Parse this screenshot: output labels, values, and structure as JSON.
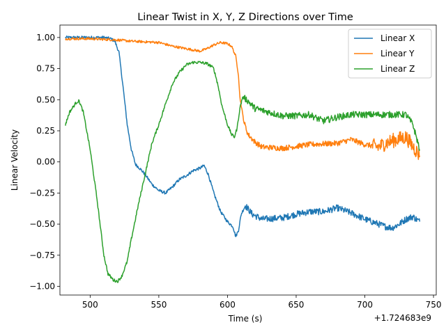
{
  "chart_data": {
    "type": "line",
    "title": "Linear Twist in X, Y, Z Directions over Time",
    "xlabel": "Time (s)",
    "ylabel": "Linear Velocity",
    "x_offset_label": "+1.724683e9",
    "xlim": [
      478,
      752
    ],
    "ylim": [
      -1.07,
      1.1
    ],
    "x_ticks": [
      500,
      550,
      600,
      650,
      700,
      750
    ],
    "x_tick_labels": [
      "500",
      "550",
      "600",
      "650",
      "700",
      "750"
    ],
    "y_ticks": [
      -1.0,
      -0.75,
      -0.5,
      -0.25,
      0.0,
      0.25,
      0.5,
      0.75,
      1.0
    ],
    "y_tick_labels": [
      "−1.00",
      "−0.75",
      "−0.50",
      "−0.25",
      "0.00",
      "0.25",
      "0.50",
      "0.75",
      "1.00"
    ],
    "grid": false,
    "legend_position": "top-right",
    "series": [
      {
        "name": "Linear X",
        "color": "#1f77b4",
        "noise": 0.012,
        "x": [
          482,
          490,
          500,
          510,
          515,
          518,
          521,
          524,
          527,
          530,
          533,
          536,
          540,
          545,
          550,
          555,
          560,
          565,
          570,
          575,
          580,
          583,
          586,
          590,
          595,
          600,
          604,
          606,
          608,
          610,
          613,
          618,
          625,
          640,
          650,
          660,
          670,
          680,
          690,
          700,
          710,
          715,
          720,
          725,
          730,
          735,
          740
        ],
        "y": [
          1.0,
          1.0,
          1.0,
          1.0,
          0.99,
          0.97,
          0.88,
          0.6,
          0.3,
          0.1,
          -0.02,
          -0.05,
          -0.1,
          -0.18,
          -0.23,
          -0.25,
          -0.2,
          -0.14,
          -0.11,
          -0.07,
          -0.05,
          -0.03,
          -0.1,
          -0.25,
          -0.4,
          -0.48,
          -0.52,
          -0.6,
          -0.55,
          -0.42,
          -0.35,
          -0.42,
          -0.46,
          -0.45,
          -0.42,
          -0.4,
          -0.4,
          -0.37,
          -0.41,
          -0.46,
          -0.5,
          -0.52,
          -0.53,
          -0.5,
          -0.46,
          -0.44,
          -0.48
        ]
      },
      {
        "name": "Linear Y",
        "color": "#ff7f0e",
        "noise": 0.01,
        "x": [
          482,
          500,
          520,
          530,
          550,
          560,
          570,
          575,
          580,
          585,
          590,
          595,
          600,
          603,
          606,
          608,
          609,
          612,
          615,
          620,
          625,
          640,
          660,
          680,
          690,
          700,
          710,
          715,
          720,
          730,
          740
        ],
        "y": [
          0.99,
          0.99,
          0.98,
          0.97,
          0.96,
          0.93,
          0.91,
          0.9,
          0.89,
          0.91,
          0.94,
          0.96,
          0.95,
          0.93,
          0.85,
          0.7,
          0.52,
          0.32,
          0.22,
          0.16,
          0.12,
          0.11,
          0.14,
          0.15,
          0.18,
          0.14,
          0.12,
          0.15,
          0.17,
          0.2,
          0.05
        ]
      },
      {
        "name": "Linear Z",
        "color": "#2ca02c",
        "noise": 0.012,
        "x": [
          482,
          485,
          490,
          492,
          495,
          500,
          505,
          510,
          513,
          517,
          520,
          523,
          527,
          530,
          535,
          540,
          545,
          550,
          555,
          560,
          565,
          570,
          575,
          580,
          585,
          588,
          590,
          593,
          596,
          600,
          603,
          605,
          607,
          609,
          611,
          614,
          620,
          630,
          640,
          650,
          660,
          665,
          670,
          680,
          690,
          700,
          710,
          720,
          730,
          735,
          740
        ],
        "y": [
          0.3,
          0.4,
          0.48,
          0.49,
          0.4,
          0.1,
          -0.3,
          -0.75,
          -0.9,
          -0.95,
          -0.96,
          -0.92,
          -0.8,
          -0.62,
          -0.35,
          -0.1,
          0.15,
          0.3,
          0.47,
          0.63,
          0.72,
          0.78,
          0.8,
          0.8,
          0.79,
          0.77,
          0.75,
          0.62,
          0.45,
          0.3,
          0.22,
          0.2,
          0.27,
          0.43,
          0.52,
          0.5,
          0.43,
          0.4,
          0.37,
          0.37,
          0.38,
          0.35,
          0.33,
          0.36,
          0.38,
          0.38,
          0.38,
          0.38,
          0.38,
          0.3,
          0.1
        ]
      }
    ]
  }
}
